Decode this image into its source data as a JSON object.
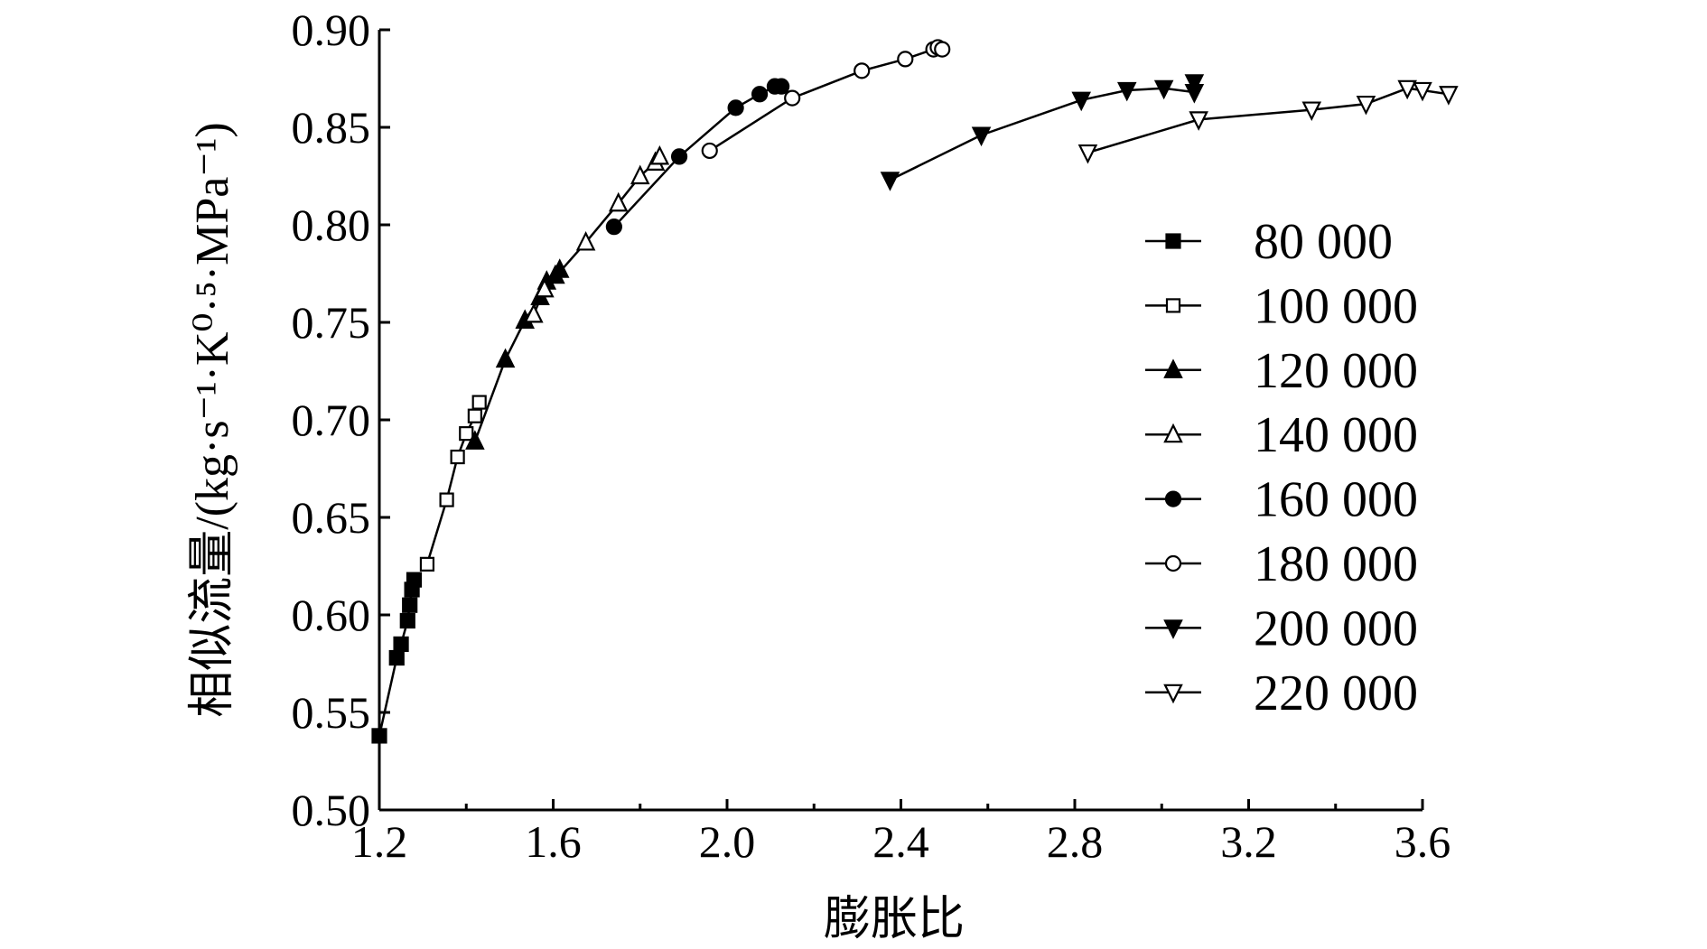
{
  "chart_data": {
    "type": "line",
    "xlabel": "膨胀比",
    "ylabel": "相似流量/(kg·s⁻¹·K⁰·⁵·MPa⁻¹)",
    "xlim": [
      1.2,
      3.6
    ],
    "ylim": [
      0.5,
      0.9
    ],
    "xticks": [
      "1.2",
      "1.6",
      "2.0",
      "2.4",
      "2.8",
      "3.2",
      "3.6"
    ],
    "yticks": [
      "0.50",
      "0.55",
      "0.60",
      "0.65",
      "0.70",
      "0.75",
      "0.80",
      "0.85",
      "0.90"
    ],
    "grid": false,
    "legend_position": "right",
    "series": [
      {
        "name": "80 000",
        "marker": "square-filled",
        "x": [
          1.2,
          1.24,
          1.25,
          1.265,
          1.27,
          1.275,
          1.28
        ],
        "y": [
          0.538,
          0.578,
          0.585,
          0.597,
          0.605,
          0.613,
          0.618
        ]
      },
      {
        "name": "100 000",
        "marker": "square-open",
        "x": [
          1.31,
          1.355,
          1.38,
          1.4,
          1.42,
          1.43
        ],
        "y": [
          0.626,
          0.659,
          0.681,
          0.693,
          0.702,
          0.709
        ]
      },
      {
        "name": "120 000",
        "marker": "triangle-up-filled",
        "x": [
          1.42,
          1.49,
          1.535,
          1.57,
          1.585,
          1.605,
          1.615
        ],
        "y": [
          0.689,
          0.731,
          0.751,
          0.763,
          0.771,
          0.774,
          0.777
        ]
      },
      {
        "name": "140 000",
        "marker": "triangle-up-open",
        "x": [
          1.555,
          1.58,
          1.675,
          1.75,
          1.8,
          1.835,
          1.845
        ],
        "y": [
          0.754,
          0.767,
          0.791,
          0.811,
          0.825,
          0.832,
          0.835
        ]
      },
      {
        "name": "160 000",
        "marker": "circle-filled",
        "x": [
          1.74,
          1.89,
          2.02,
          2.075,
          2.11,
          2.125
        ],
        "y": [
          0.799,
          0.835,
          0.86,
          0.867,
          0.871,
          0.871
        ]
      },
      {
        "name": "180 000",
        "marker": "circle-open",
        "x": [
          1.96,
          2.15,
          2.31,
          2.41,
          2.475,
          2.485,
          2.495
        ],
        "y": [
          0.838,
          0.865,
          0.879,
          0.885,
          0.89,
          0.891,
          0.89
        ]
      },
      {
        "name": "200 000",
        "marker": "triangle-down-filled",
        "x": [
          2.375,
          2.585,
          2.815,
          2.92,
          3.005,
          3.075,
          3.075
        ],
        "y": [
          0.823,
          0.846,
          0.864,
          0.869,
          0.87,
          0.868,
          0.873
        ]
      },
      {
        "name": "220 000",
        "marker": "triangle-down-open",
        "x": [
          2.83,
          3.085,
          3.345,
          3.47,
          3.565,
          3.6,
          3.66
        ],
        "y": [
          0.837,
          0.854,
          0.859,
          0.862,
          0.87,
          0.869,
          0.867
        ]
      }
    ]
  }
}
